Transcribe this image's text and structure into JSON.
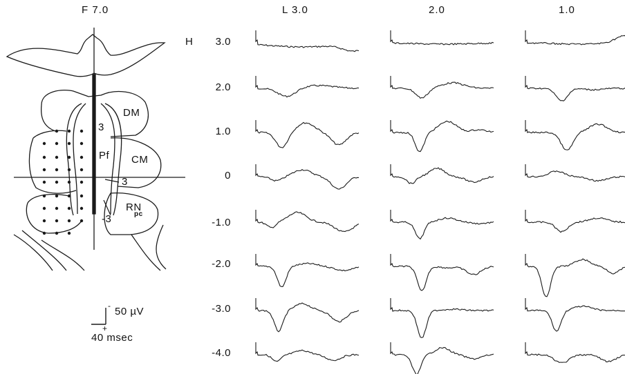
{
  "atlas": {
    "section_label": "F 7.0",
    "structures": [
      "DM",
      "CM",
      "Pf",
      "RN",
      "pc"
    ],
    "electrode_depths": [
      "3",
      "-3",
      "3"
    ]
  },
  "scale_bar": {
    "amplitude": "50 µV",
    "time": "40 msec",
    "neg_sign": "-",
    "pos_sign": "+"
  },
  "grid": {
    "axis_prefix": "H",
    "columns": [
      "L 3.0",
      "2.0",
      "1.0"
    ],
    "rows": [
      "3.0",
      "2.0",
      "1.0",
      "0",
      "-1.0",
      "-2.0",
      "-3.0",
      "-4.0"
    ]
  },
  "trace_color": "#1a1a1a"
}
